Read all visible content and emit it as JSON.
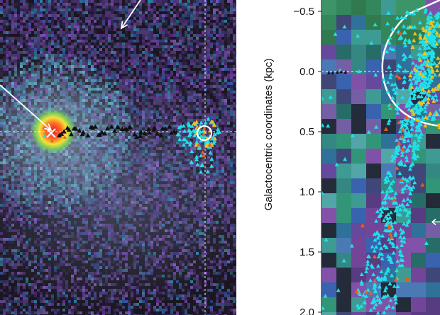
{
  "chart_data": [
    {
      "type": "scatter",
      "panel": "left",
      "title": "",
      "xlabel": "",
      "ylabel": "",
      "grid": false,
      "background": "false-color sky map (purple/blue noise with a bright green-yellow-red source)",
      "series": [
        {
          "marker": "triangle",
          "color": "#111111",
          "description": "black triangles along a horizontal chain"
        },
        {
          "marker": "triangle",
          "color": "#22e0ea",
          "description": "cyan triangles clustered near a circled position"
        },
        {
          "marker": "triangle",
          "color": "#f5c21a",
          "description": "yellow triangles mixed in the cluster"
        },
        {
          "marker": "triangle",
          "color": "#e8601c",
          "description": "orange triangles mixed in the cluster"
        }
      ],
      "annotations": [
        "white arrow toward bright source",
        "white arrow pointing up-left",
        "white circle",
        "white cross",
        "dashed white horizontal line",
        "dashed white vertical line"
      ]
    },
    {
      "type": "scatter",
      "panel": "right",
      "title": "",
      "xlabel": "",
      "ylabel": "Galactocentric coordinates (kpc)",
      "y_ticks": [
        "−0.5",
        "0.0",
        "0.5",
        "1.0",
        "1.5",
        "2.0"
      ],
      "y_tick_values": [
        -0.5,
        0.0,
        0.5,
        1.0,
        1.5,
        2.0
      ],
      "ylim": [
        -0.55,
        2.0
      ],
      "grid": false,
      "background": "coarse pixelated colour map (green/teal/blue/purple/black cells)",
      "series": [
        {
          "marker": "triangle",
          "color": "#22e0ea",
          "description": "dense cyan stream extending downward from the top-right region"
        },
        {
          "marker": "triangle",
          "color": "#f5c21a",
          "description": "yellow triangles concentrated near the top-right"
        },
        {
          "marker": "triangle",
          "color": "#e8601c",
          "description": "orange triangles"
        },
        {
          "marker": "triangle",
          "color": "#111111",
          "description": "a few black triangles on the dashed zero line"
        }
      ],
      "annotations": [
        "white circle arc at top right",
        "dashed white horizontal line at y = 0.0",
        "white arrow pointing left near y ≈ 1.25"
      ]
    }
  ],
  "colors": {
    "cyan": "#22e0ea",
    "yellow": "#f5c21a",
    "orange": "#e8601c",
    "black": "#111111",
    "white": "#ffffff"
  }
}
